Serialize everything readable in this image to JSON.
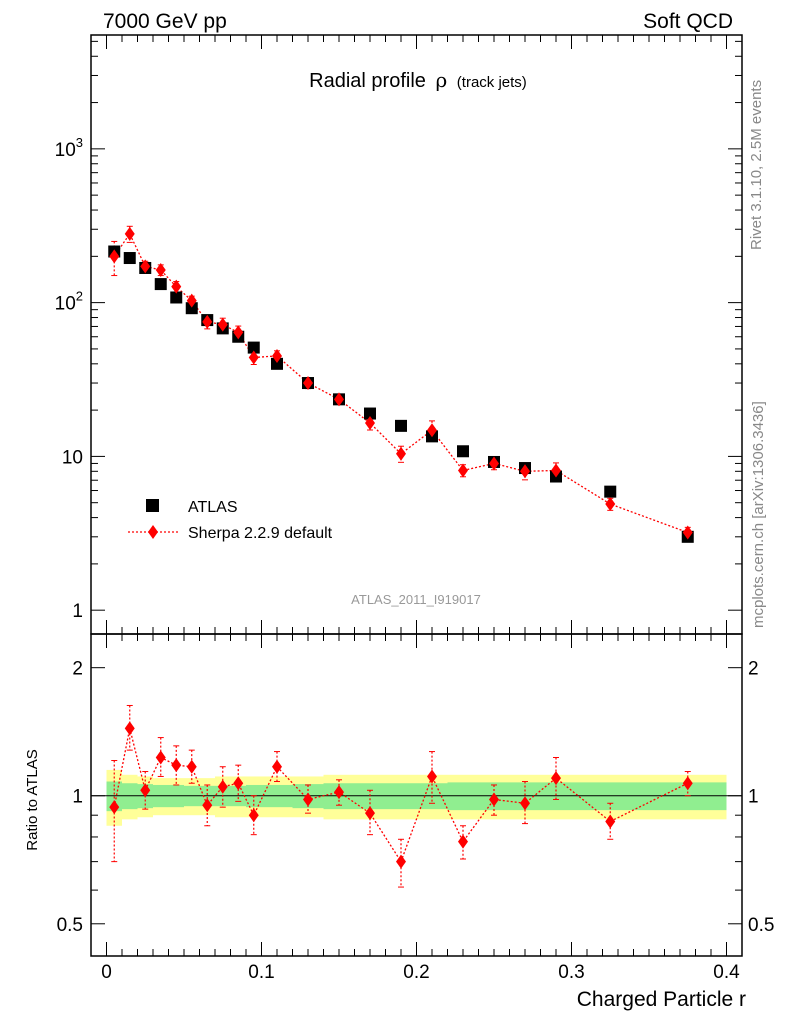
{
  "header": {
    "left": "7000 GeV pp",
    "right": "Soft QCD"
  },
  "side_labels": {
    "rivet": "Rivet 3.1.10,  2.5M events",
    "mcplots": "mcplots.cern.ch [arXiv:1306.3436]"
  },
  "watermark": "ATLAS_2011_I919017",
  "colors": {
    "data": "#000000",
    "mc": "#ff0000",
    "band_inner": "#90ee90",
    "band_outer": "#ffff99"
  },
  "chart_data": [
    {
      "type": "scatter",
      "panel": "main",
      "title": "Radial profile",
      "title_symbol": "ρ",
      "title_suffix": "(track jets)",
      "yscale": "log",
      "xlim": [
        -0.01,
        0.41
      ],
      "ylim": [
        0.7,
        5500
      ],
      "y_major_ticks": [
        1,
        10,
        100,
        1000
      ],
      "y_tick_labels": [
        "1",
        "10",
        "10²",
        "10³"
      ],
      "legend_position": "bottom-left",
      "series": [
        {
          "name": "ATLAS",
          "marker": "square",
          "x": [
            0.005,
            0.015,
            0.025,
            0.035,
            0.045,
            0.055,
            0.065,
            0.075,
            0.085,
            0.095,
            0.11,
            0.13,
            0.15,
            0.17,
            0.19,
            0.21,
            0.23,
            0.25,
            0.27,
            0.29,
            0.325,
            0.375
          ],
          "y": [
            215,
            195,
            168,
            132,
            108,
            92,
            77,
            68,
            60,
            51,
            40,
            30,
            23.5,
            19,
            15.8,
            13.5,
            10.8,
            9.2,
            8.4,
            7.4,
            5.9,
            3.0
          ]
        },
        {
          "name": "Sherpa 2.2.9 default",
          "marker": "diamond",
          "line": "dotted",
          "x": [
            0.005,
            0.015,
            0.025,
            0.035,
            0.045,
            0.055,
            0.065,
            0.075,
            0.085,
            0.095,
            0.11,
            0.13,
            0.15,
            0.17,
            0.19,
            0.21,
            0.23,
            0.25,
            0.27,
            0.29,
            0.325,
            0.375
          ],
          "y": [
            200,
            280,
            172,
            163,
            127,
            103,
            75,
            72,
            64,
            44,
            45,
            30,
            23.5,
            16.5,
            10.4,
            14.8,
            8.1,
            9.0,
            8.0,
            8.1,
            4.9,
            3.2
          ],
          "err_rel": [
            0.25,
            0.12,
            0.08,
            0.08,
            0.08,
            0.07,
            0.1,
            0.1,
            0.1,
            0.1,
            0.08,
            0.08,
            0.07,
            0.1,
            0.12,
            0.15,
            0.09,
            0.09,
            0.12,
            0.12,
            0.09,
            0.08
          ]
        }
      ]
    },
    {
      "type": "scatter",
      "panel": "ratio",
      "xlabel": "Charged Particle r",
      "ylabel": "Ratio to ATLAS",
      "xlim": [
        -0.01,
        0.41
      ],
      "ylim": [
        0.42,
        2.4
      ],
      "yscale": "log",
      "x_tick_labels": [
        "0",
        "0.1",
        "0.2",
        "0.3",
        "0.4"
      ],
      "y_tick_labels": [
        "0.5",
        "1",
        "2"
      ],
      "bands": {
        "edges": [
          0.0,
          0.01,
          0.02,
          0.03,
          0.04,
          0.05,
          0.06,
          0.07,
          0.08,
          0.09,
          0.1,
          0.12,
          0.14,
          0.16,
          0.18,
          0.2,
          0.22,
          0.24,
          0.26,
          0.28,
          0.3,
          0.35,
          0.4
        ],
        "inner_half": [
          0.08,
          0.07,
          0.065,
          0.06,
          0.06,
          0.055,
          0.055,
          0.055,
          0.055,
          0.06,
          0.06,
          0.065,
          0.07,
          0.07,
          0.07,
          0.07,
          0.075,
          0.075,
          0.075,
          0.075,
          0.075,
          0.075
        ],
        "outer_half": [
          0.15,
          0.12,
          0.11,
          0.1,
          0.1,
          0.1,
          0.1,
          0.11,
          0.11,
          0.11,
          0.11,
          0.11,
          0.12,
          0.12,
          0.12,
          0.12,
          0.12,
          0.12,
          0.12,
          0.12,
          0.12,
          0.12
        ]
      },
      "series": [
        {
          "name": "Sherpa 2.2.9 default / ATLAS",
          "x": [
            0.005,
            0.015,
            0.025,
            0.035,
            0.045,
            0.055,
            0.065,
            0.075,
            0.085,
            0.095,
            0.11,
            0.13,
            0.15,
            0.17,
            0.19,
            0.21,
            0.23,
            0.25,
            0.27,
            0.29,
            0.325,
            0.375
          ],
          "y": [
            0.94,
            1.44,
            1.03,
            1.23,
            1.18,
            1.17,
            0.95,
            1.05,
            1.07,
            0.9,
            1.17,
            0.98,
            1.02,
            0.91,
            0.7,
            1.11,
            0.78,
            0.98,
            0.96,
            1.1,
            0.87,
            1.07
          ],
          "err_lo": [
            0.24,
            0.16,
            0.1,
            0.12,
            0.12,
            0.1,
            0.1,
            0.11,
            0.1,
            0.09,
            0.09,
            0.07,
            0.07,
            0.1,
            0.09,
            0.15,
            0.07,
            0.08,
            0.1,
            0.12,
            0.08,
            0.07
          ],
          "err_hi": [
            0.27,
            0.19,
            0.11,
            0.14,
            0.13,
            0.11,
            0.11,
            0.12,
            0.11,
            0.1,
            0.1,
            0.08,
            0.07,
            0.12,
            0.09,
            0.16,
            0.07,
            0.08,
            0.12,
            0.13,
            0.09,
            0.07
          ]
        }
      ]
    }
  ]
}
